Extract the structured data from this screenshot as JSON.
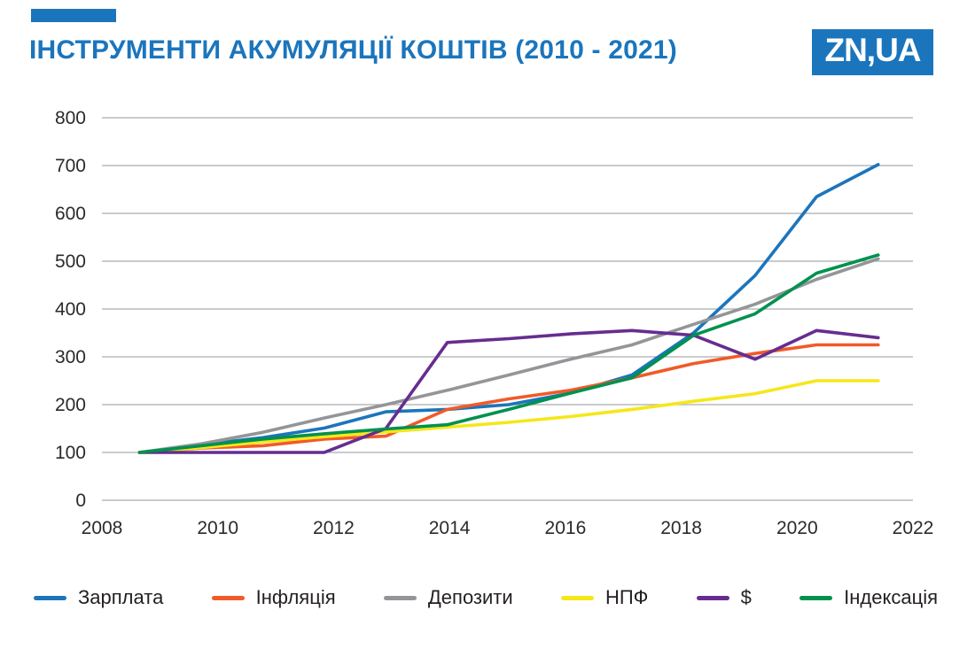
{
  "header": {
    "title": "ІНСТРУМЕНТИ АКУМУЛЯЦІЇ КОШТІВ (2010 - 2021)",
    "logo_text": "ZN,UA"
  },
  "colors": {
    "accent_blue": "#1b75bc",
    "title_blue": "#1b75bc",
    "logo_bg": "#1b75bc",
    "grid": "#aaacae",
    "tick_text": "#2b2a29"
  },
  "chart_data": {
    "type": "line",
    "title": "ІНСТРУМЕНТИ АКУМУЛЯЦІЇ КОШТІВ (2010 - 2021)",
    "xlabel": "",
    "ylabel": "",
    "x": [
      2009,
      2010,
      2011,
      2012,
      2013,
      2014,
      2015,
      2016,
      2017,
      2018,
      2019,
      2020,
      2021
    ],
    "series": [
      {
        "name": "Зарплата",
        "color": "#1b75bc",
        "values": [
          100,
          116,
          131,
          151,
          185,
          190,
          200,
          224,
          262,
          350,
          470,
          635,
          702
        ]
      },
      {
        "name": "Інфляція",
        "color": "#f15a29",
        "values": [
          100,
          109,
          114,
          128,
          134,
          190,
          212,
          230,
          256,
          286,
          307,
          325,
          325
        ]
      },
      {
        "name": "Депозити",
        "color": "#939598",
        "values": [
          100,
          118,
          142,
          172,
          200,
          230,
          262,
          295,
          325,
          368,
          410,
          462,
          505
        ]
      },
      {
        "name": "НПФ",
        "color": "#f5e71a",
        "values": [
          100,
          110,
          122,
          133,
          143,
          153,
          163,
          175,
          190,
          207,
          223,
          250,
          250
        ]
      },
      {
        "name": "$",
        "color": "#662d91",
        "values": [
          100,
          100,
          100,
          100,
          150,
          330,
          338,
          348,
          355,
          345,
          295,
          355,
          340
        ]
      },
      {
        "name": "Індексація",
        "color": "#00914e",
        "values": [
          100,
          114,
          128,
          139,
          149,
          158,
          190,
          224,
          256,
          345,
          390,
          475,
          513
        ]
      }
    ],
    "xlim": [
      2008,
      2022
    ],
    "ylim": [
      0,
      800
    ],
    "xticks": [
      2008,
      2010,
      2012,
      2014,
      2016,
      2018,
      2020,
      2022
    ],
    "yticks": [
      0,
      100,
      200,
      300,
      400,
      500,
      600,
      700,
      800
    ],
    "x_plot_span": [
      2008.65,
      2021.4
    ],
    "grid": "horizontal",
    "legend_position": "bottom"
  }
}
